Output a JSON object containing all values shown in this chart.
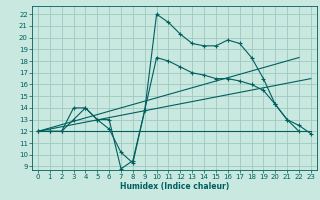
{
  "title": "",
  "xlabel": "Humidex (Indice chaleur)",
  "bg_color": "#c8e8e0",
  "grid_color": "#a0c8c0",
  "line_color": "#005f5f",
  "xlim": [
    -0.5,
    23.5
  ],
  "ylim": [
    8.7,
    22.7
  ],
  "yticks": [
    9,
    10,
    11,
    12,
    13,
    14,
    15,
    16,
    17,
    18,
    19,
    20,
    21,
    22
  ],
  "xticks": [
    0,
    1,
    2,
    3,
    4,
    5,
    6,
    7,
    8,
    9,
    10,
    11,
    12,
    13,
    14,
    15,
    16,
    17,
    18,
    19,
    20,
    21,
    22,
    23
  ],
  "lines": [
    {
      "x": [
        0,
        1,
        2,
        3,
        4,
        5,
        6,
        7,
        8,
        9,
        10,
        11,
        12,
        13,
        14,
        15,
        16,
        17,
        18,
        19,
        20,
        21,
        22
      ],
      "y": [
        12,
        12,
        12,
        14,
        14,
        13,
        13,
        8.8,
        9.5,
        13.8,
        22,
        21.3,
        20.3,
        19.5,
        19.3,
        19.3,
        19.8,
        19.5,
        18.3,
        16.5,
        14.3,
        13.0,
        12.0
      ],
      "marker": true
    },
    {
      "x": [
        0,
        1,
        2,
        3,
        4,
        5,
        6,
        7,
        8,
        9,
        10,
        11,
        12,
        13,
        14,
        15,
        16,
        17,
        18,
        19,
        20,
        21,
        22,
        23
      ],
      "y": [
        12,
        12,
        12,
        13,
        14,
        13,
        12.2,
        10.2,
        9.3,
        13.8,
        18.3,
        18.0,
        17.5,
        17.0,
        16.8,
        16.5,
        16.5,
        16.3,
        16.0,
        15.5,
        14.3,
        13.0,
        12.5,
        11.8
      ],
      "marker": true
    },
    {
      "x": [
        0,
        22
      ],
      "y": [
        12,
        18.3
      ],
      "marker": false
    },
    {
      "x": [
        0,
        23
      ],
      "y": [
        12,
        16.5
      ],
      "marker": false
    },
    {
      "x": [
        0,
        23
      ],
      "y": [
        12,
        12.0
      ],
      "marker": false
    }
  ]
}
